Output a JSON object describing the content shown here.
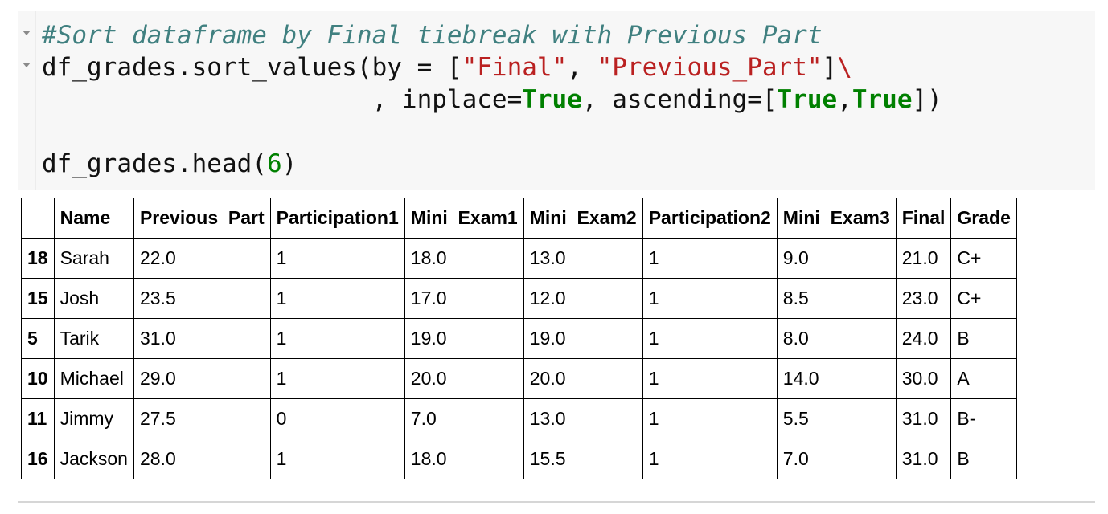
{
  "code": {
    "line1": "#Sort dataframe by Final tiebreak with Previous Part",
    "line2_pre": "df_grades.sort_values(by = [",
    "line2_str1": "\"Final\"",
    "line2_sep": ", ",
    "line2_str2": "\"Previous_Part\"",
    "line2_close": "]",
    "line2_cont": "\\",
    "line3_indent": "                      , inplace=",
    "line3_kw1": "True",
    "line3_mid": ", ascending=[",
    "line3_kw2": "True",
    "line3_comma": ",",
    "line3_kw3": "True",
    "line3_end": "])",
    "line5_pre": "df_grades.head(",
    "line5_num": "6",
    "line5_end": ")"
  },
  "table": {
    "columns": [
      "",
      "Name",
      "Previous_Part",
      "Participation1",
      "Mini_Exam1",
      "Mini_Exam2",
      "Participation2",
      "Mini_Exam3",
      "Final",
      "Grade"
    ],
    "rows": [
      {
        "index": "18",
        "cells": [
          "Sarah",
          "22.0",
          "1",
          "18.0",
          "13.0",
          "1",
          "9.0",
          "21.0",
          "C+"
        ]
      },
      {
        "index": "15",
        "cells": [
          "Josh",
          "23.5",
          "1",
          "17.0",
          "12.0",
          "1",
          "8.5",
          "23.0",
          "C+"
        ]
      },
      {
        "index": "5",
        "cells": [
          "Tarik",
          "31.0",
          "1",
          "19.0",
          "19.0",
          "1",
          "8.0",
          "24.0",
          "B"
        ]
      },
      {
        "index": "10",
        "cells": [
          "Michael",
          "29.0",
          "1",
          "20.0",
          "20.0",
          "1",
          "14.0",
          "30.0",
          "A"
        ]
      },
      {
        "index": "11",
        "cells": [
          "Jimmy",
          "27.5",
          "0",
          "7.0",
          "13.0",
          "1",
          "5.5",
          "31.0",
          "B-"
        ]
      },
      {
        "index": "16",
        "cells": [
          "Jackson",
          "28.0",
          "1",
          "18.0",
          "15.5",
          "1",
          "7.0",
          "31.0",
          "B"
        ]
      }
    ]
  }
}
